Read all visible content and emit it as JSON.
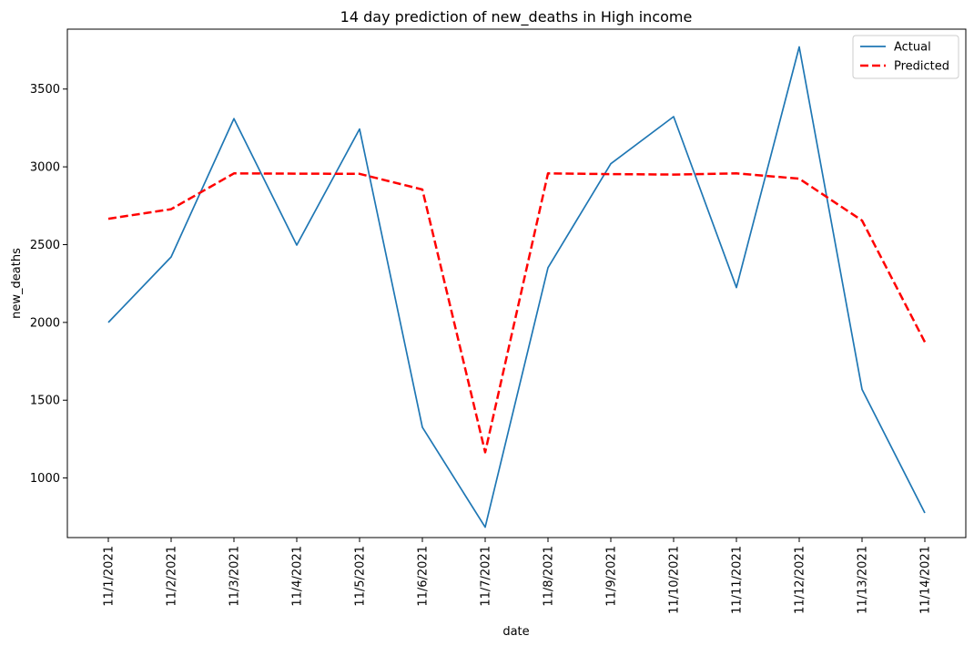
{
  "chart_data": {
    "type": "line",
    "title": "14 day prediction of new_deaths in High income",
    "xlabel": "date",
    "ylabel": "new_deaths",
    "categories": [
      "11/1/2021",
      "11/2/2021",
      "11/3/2021",
      "11/4/2021",
      "11/5/2021",
      "11/6/2021",
      "11/7/2021",
      "11/8/2021",
      "11/9/2021",
      "11/10/2021",
      "11/11/2021",
      "11/12/2021",
      "11/13/2021",
      "11/14/2021"
    ],
    "yticks": [
      1000,
      1500,
      2000,
      2500,
      3000,
      3500
    ],
    "ylim": [
      617,
      3885
    ],
    "grid": false,
    "legend_position": "top-right",
    "series": [
      {
        "name": "Actual",
        "color": "#1f77b4",
        "style": "solid",
        "values": [
          2000,
          2421,
          3310,
          2497,
          3243,
          1326,
          684,
          2352,
          3020,
          3323,
          2224,
          3771,
          1569,
          775
        ]
      },
      {
        "name": "Predicted",
        "color": "#ff0000",
        "style": "dashed",
        "values": [
          2666,
          2728,
          2958,
          2956,
          2955,
          2854,
          1165,
          2958,
          2953,
          2950,
          2958,
          2924,
          2655,
          1874
        ]
      }
    ]
  }
}
